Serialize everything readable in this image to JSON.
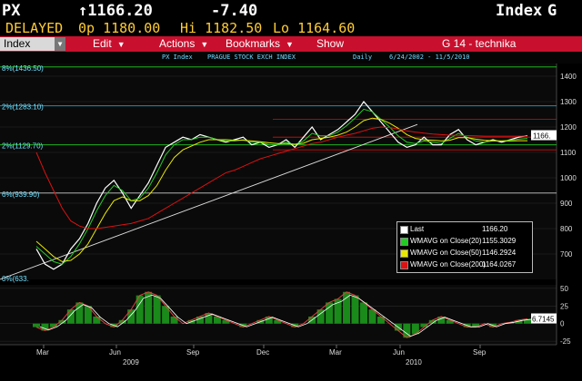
{
  "header": {
    "ticker": "PX",
    "price": "↑1166.20",
    "change": "-7.40",
    "index_label": "Index",
    "page": "G",
    "status": "DELAYED",
    "open": "0p 1180.00",
    "high": "Hi 1182.50",
    "low": "Lo 1164.60"
  },
  "menu": {
    "index_value": "Index",
    "items": [
      "Edit",
      "Actions",
      "Bookmarks",
      "Show"
    ],
    "right_title": "G 14 - technika"
  },
  "subheader": {
    "name": "PX Index",
    "exchange": "PRAGUE STOCK EXCH INDEX",
    "freq": "Daily",
    "range": "6/24/2002 - 11/5/2010"
  },
  "fib_labels": [
    "8%(1436.50)",
    "2%(1283.10)",
    "2%(1129.70)",
    "6%(939.90)",
    "0%(633."
  ],
  "legend": [
    {
      "name": "Last",
      "value": "1166.20",
      "color": "#ffffff"
    },
    {
      "name": "WMAVG on Close(20)",
      "value": "1155.3029",
      "color": "#22cc22"
    },
    {
      "name": "WMAVG on Close(50)",
      "value": "1146.2924",
      "color": "#e8e800"
    },
    {
      "name": "WMAVG on Close(200)",
      "value": "1164.0267",
      "color": "#dd1111"
    }
  ],
  "colors": {
    "menu_bar": "#c8102e",
    "header_yellow": "#ffcc33",
    "fib_green": "#22cc22",
    "fib_cyan": "#22a5c8",
    "ma20": "#22cc22",
    "ma50": "#e8e800",
    "ma200": "#dd1111"
  },
  "chart_data": {
    "type": "line",
    "title": "",
    "xlabel": "",
    "ylabel": "",
    "y_axis_ticks": [
      700,
      800,
      900,
      1000,
      1100,
      1200,
      1300,
      1400
    ],
    "ylim": [
      600,
      1450
    ],
    "x_ticks": [
      "Mar",
      "Jun",
      "Sep",
      "Dec",
      "Mar",
      "Jun",
      "Sep"
    ],
    "year_labels": [
      "2009",
      "2010"
    ],
    "fib_levels": [
      1436.5,
      1283.1,
      1129.7,
      939.9
    ],
    "resistance_levels": [
      1230,
      1160,
      1110
    ],
    "trendline": {
      "from": [
        0.0,
        600
      ],
      "to": [
        0.75,
        1210
      ]
    },
    "last_value_label": "1166.",
    "series": [
      {
        "name": "Last",
        "values": [
          720,
          660,
          640,
          660,
          720,
          760,
          820,
          900,
          960,
          990,
          940,
          880,
          930,
          980,
          1050,
          1120,
          1140,
          1160,
          1150,
          1170,
          1160,
          1150,
          1140,
          1150,
          1160,
          1130,
          1140,
          1120,
          1130,
          1150,
          1120,
          1160,
          1200,
          1150,
          1170,
          1190,
          1220,
          1250,
          1300,
          1260,
          1220,
          1180,
          1140,
          1120,
          1130,
          1160,
          1130,
          1130,
          1170,
          1190,
          1150,
          1130,
          1140,
          1150,
          1140,
          1150,
          1160,
          1166
        ]
      },
      {
        "name": "WMAVG on Close(20)",
        "values": [
          730,
          700,
          670,
          660,
          690,
          740,
          800,
          870,
          930,
          970,
          950,
          910,
          920,
          960,
          1020,
          1090,
          1130,
          1150,
          1150,
          1160,
          1160,
          1150,
          1145,
          1145,
          1150,
          1140,
          1140,
          1130,
          1130,
          1140,
          1130,
          1145,
          1175,
          1165,
          1165,
          1180,
          1205,
          1235,
          1270,
          1260,
          1230,
          1200,
          1165,
          1140,
          1135,
          1145,
          1140,
          1135,
          1155,
          1175,
          1160,
          1145,
          1140,
          1145,
          1145,
          1148,
          1152,
          1155
        ]
      },
      {
        "name": "WMAVG on Close(50)",
        "values": [
          750,
          720,
          690,
          670,
          675,
          700,
          740,
          800,
          860,
          910,
          925,
          910,
          910,
          930,
          970,
          1030,
          1080,
          1110,
          1125,
          1140,
          1150,
          1150,
          1150,
          1148,
          1148,
          1145,
          1142,
          1138,
          1135,
          1135,
          1132,
          1136,
          1150,
          1155,
          1160,
          1168,
          1180,
          1200,
          1225,
          1235,
          1230,
          1215,
          1195,
          1170,
          1155,
          1150,
          1148,
          1145,
          1148,
          1158,
          1158,
          1152,
          1148,
          1146,
          1145,
          1145,
          1146,
          1146
        ]
      },
      {
        "name": "WMAVG on Close(200)",
        "values": [
          1100,
          1020,
          950,
          880,
          830,
          810,
          800,
          800,
          805,
          810,
          815,
          820,
          830,
          840,
          860,
          880,
          900,
          920,
          940,
          960,
          980,
          1000,
          1020,
          1030,
          1045,
          1060,
          1075,
          1085,
          1095,
          1105,
          1115,
          1125,
          1135,
          1140,
          1150,
          1160,
          1168,
          1175,
          1185,
          1195,
          1200,
          1198,
          1192,
          1185,
          1180,
          1176,
          1172,
          1170,
          1168,
          1167,
          1166,
          1165,
          1164,
          1164,
          1164,
          1164,
          1164,
          1164
        ]
      }
    ],
    "oscillator": {
      "ylim": [
        -30,
        55
      ],
      "y_axis_ticks": [
        50,
        25,
        0,
        -25
      ],
      "last_label": "6.7145",
      "values": [
        -5,
        -10,
        -5,
        5,
        20,
        30,
        25,
        10,
        0,
        -5,
        5,
        20,
        40,
        45,
        40,
        25,
        10,
        0,
        5,
        10,
        15,
        10,
        5,
        0,
        -5,
        0,
        5,
        10,
        5,
        0,
        -5,
        0,
        10,
        20,
        30,
        35,
        45,
        40,
        30,
        20,
        10,
        0,
        -10,
        -20,
        -15,
        -5,
        5,
        10,
        5,
        0,
        -5,
        -5,
        0,
        -5,
        0,
        2,
        5,
        6.7
      ]
    }
  }
}
